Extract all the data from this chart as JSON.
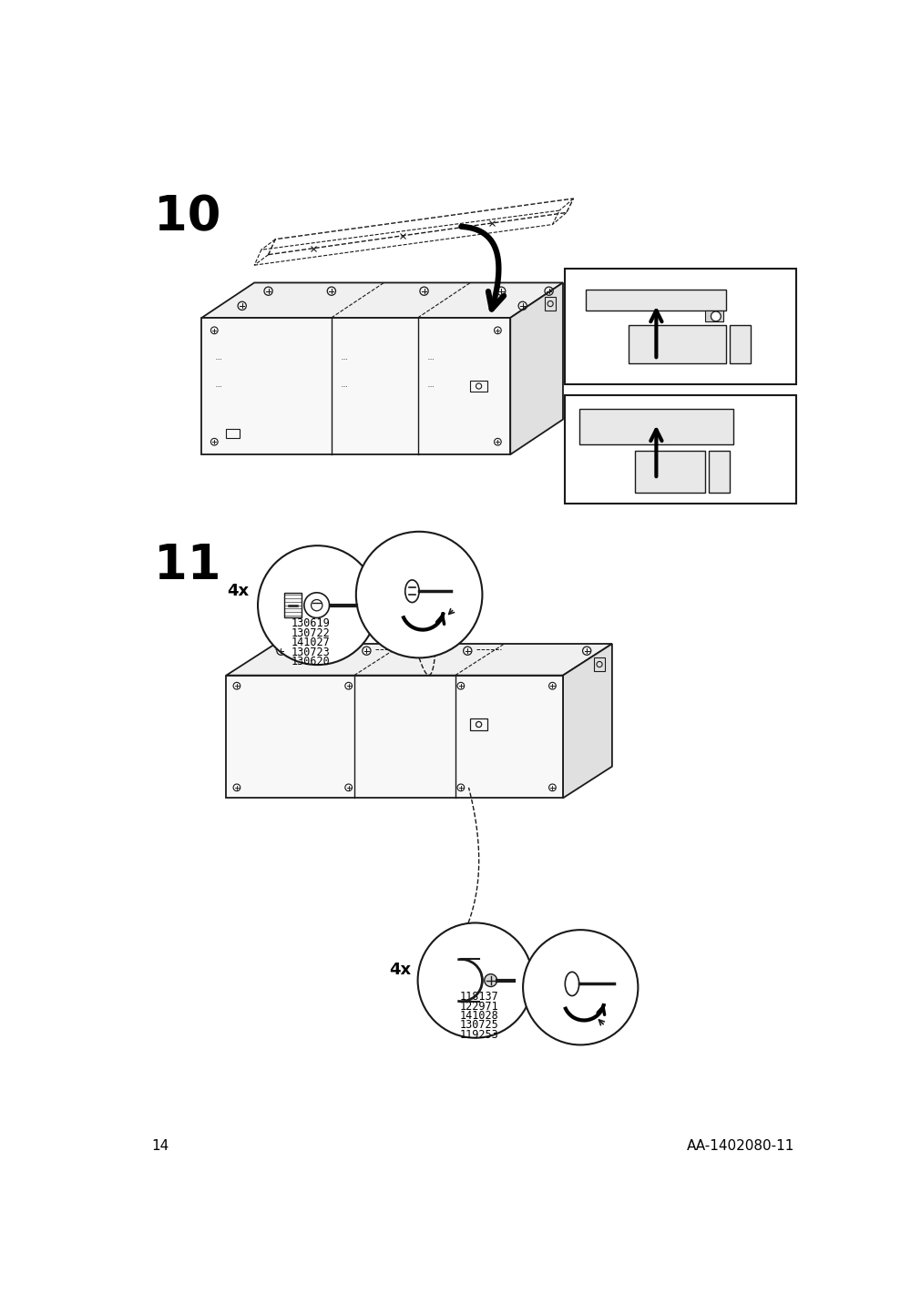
{
  "page_number": "14",
  "doc_code": "AA-1402080-11",
  "step_numbers": [
    "10",
    "11"
  ],
  "step11_top_part_codes": [
    "130619",
    "130722",
    "141027",
    "130723",
    "130620"
  ],
  "step11_bottom_part_codes": [
    "118137",
    "122971",
    "141028",
    "130725",
    "119253"
  ],
  "step11_top_quantity": "4x",
  "step11_bottom_quantity": "4x",
  "bg_color": "#ffffff",
  "line_color": "#1a1a1a",
  "text_color": "#000000",
  "step_font_size": 38,
  "page_num_font_size": 11,
  "quantity_font_size": 13
}
